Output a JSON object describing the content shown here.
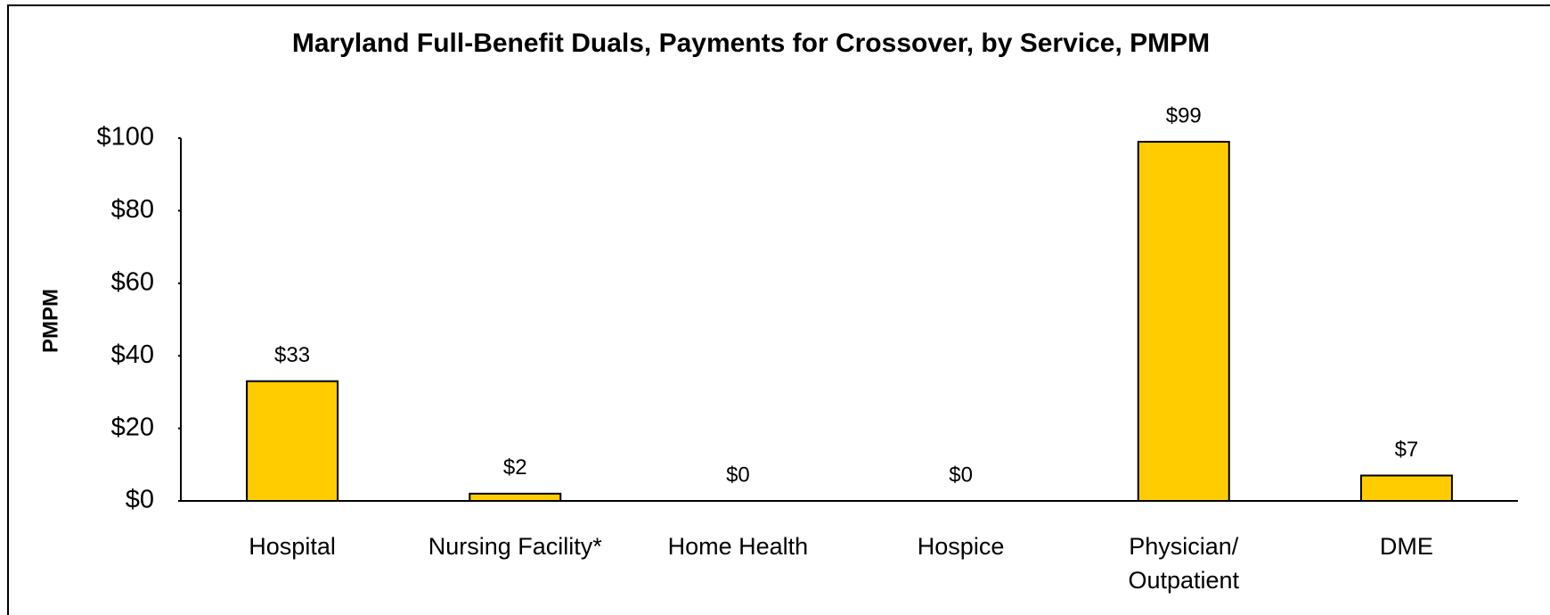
{
  "chart_data": {
    "type": "bar",
    "title": "Maryland Full-Benefit Duals, Payments for Crossover, by Service, PMPM",
    "y_label": "PMPM",
    "categories": [
      "Hospital",
      "Nursing Facility*",
      "Home Health",
      "Hospice",
      "Physician/\nOutpatient",
      "DME"
    ],
    "values": [
      33,
      2,
      0,
      0,
      99,
      7
    ],
    "value_labels": [
      "$33",
      "$2",
      "$0",
      "$0",
      "$99",
      "$7"
    ],
    "color": "#ffcc00",
    "ylim": [
      0,
      100
    ],
    "yticks": [
      {
        "value": 0,
        "label": "$0"
      },
      {
        "value": 20,
        "label": "$20"
      },
      {
        "value": 40,
        "label": "$40"
      },
      {
        "value": 60,
        "label": "$60"
      },
      {
        "value": 80,
        "label": "$80"
      },
      {
        "value": 100,
        "label": "$100"
      }
    ],
    "grid": false
  }
}
